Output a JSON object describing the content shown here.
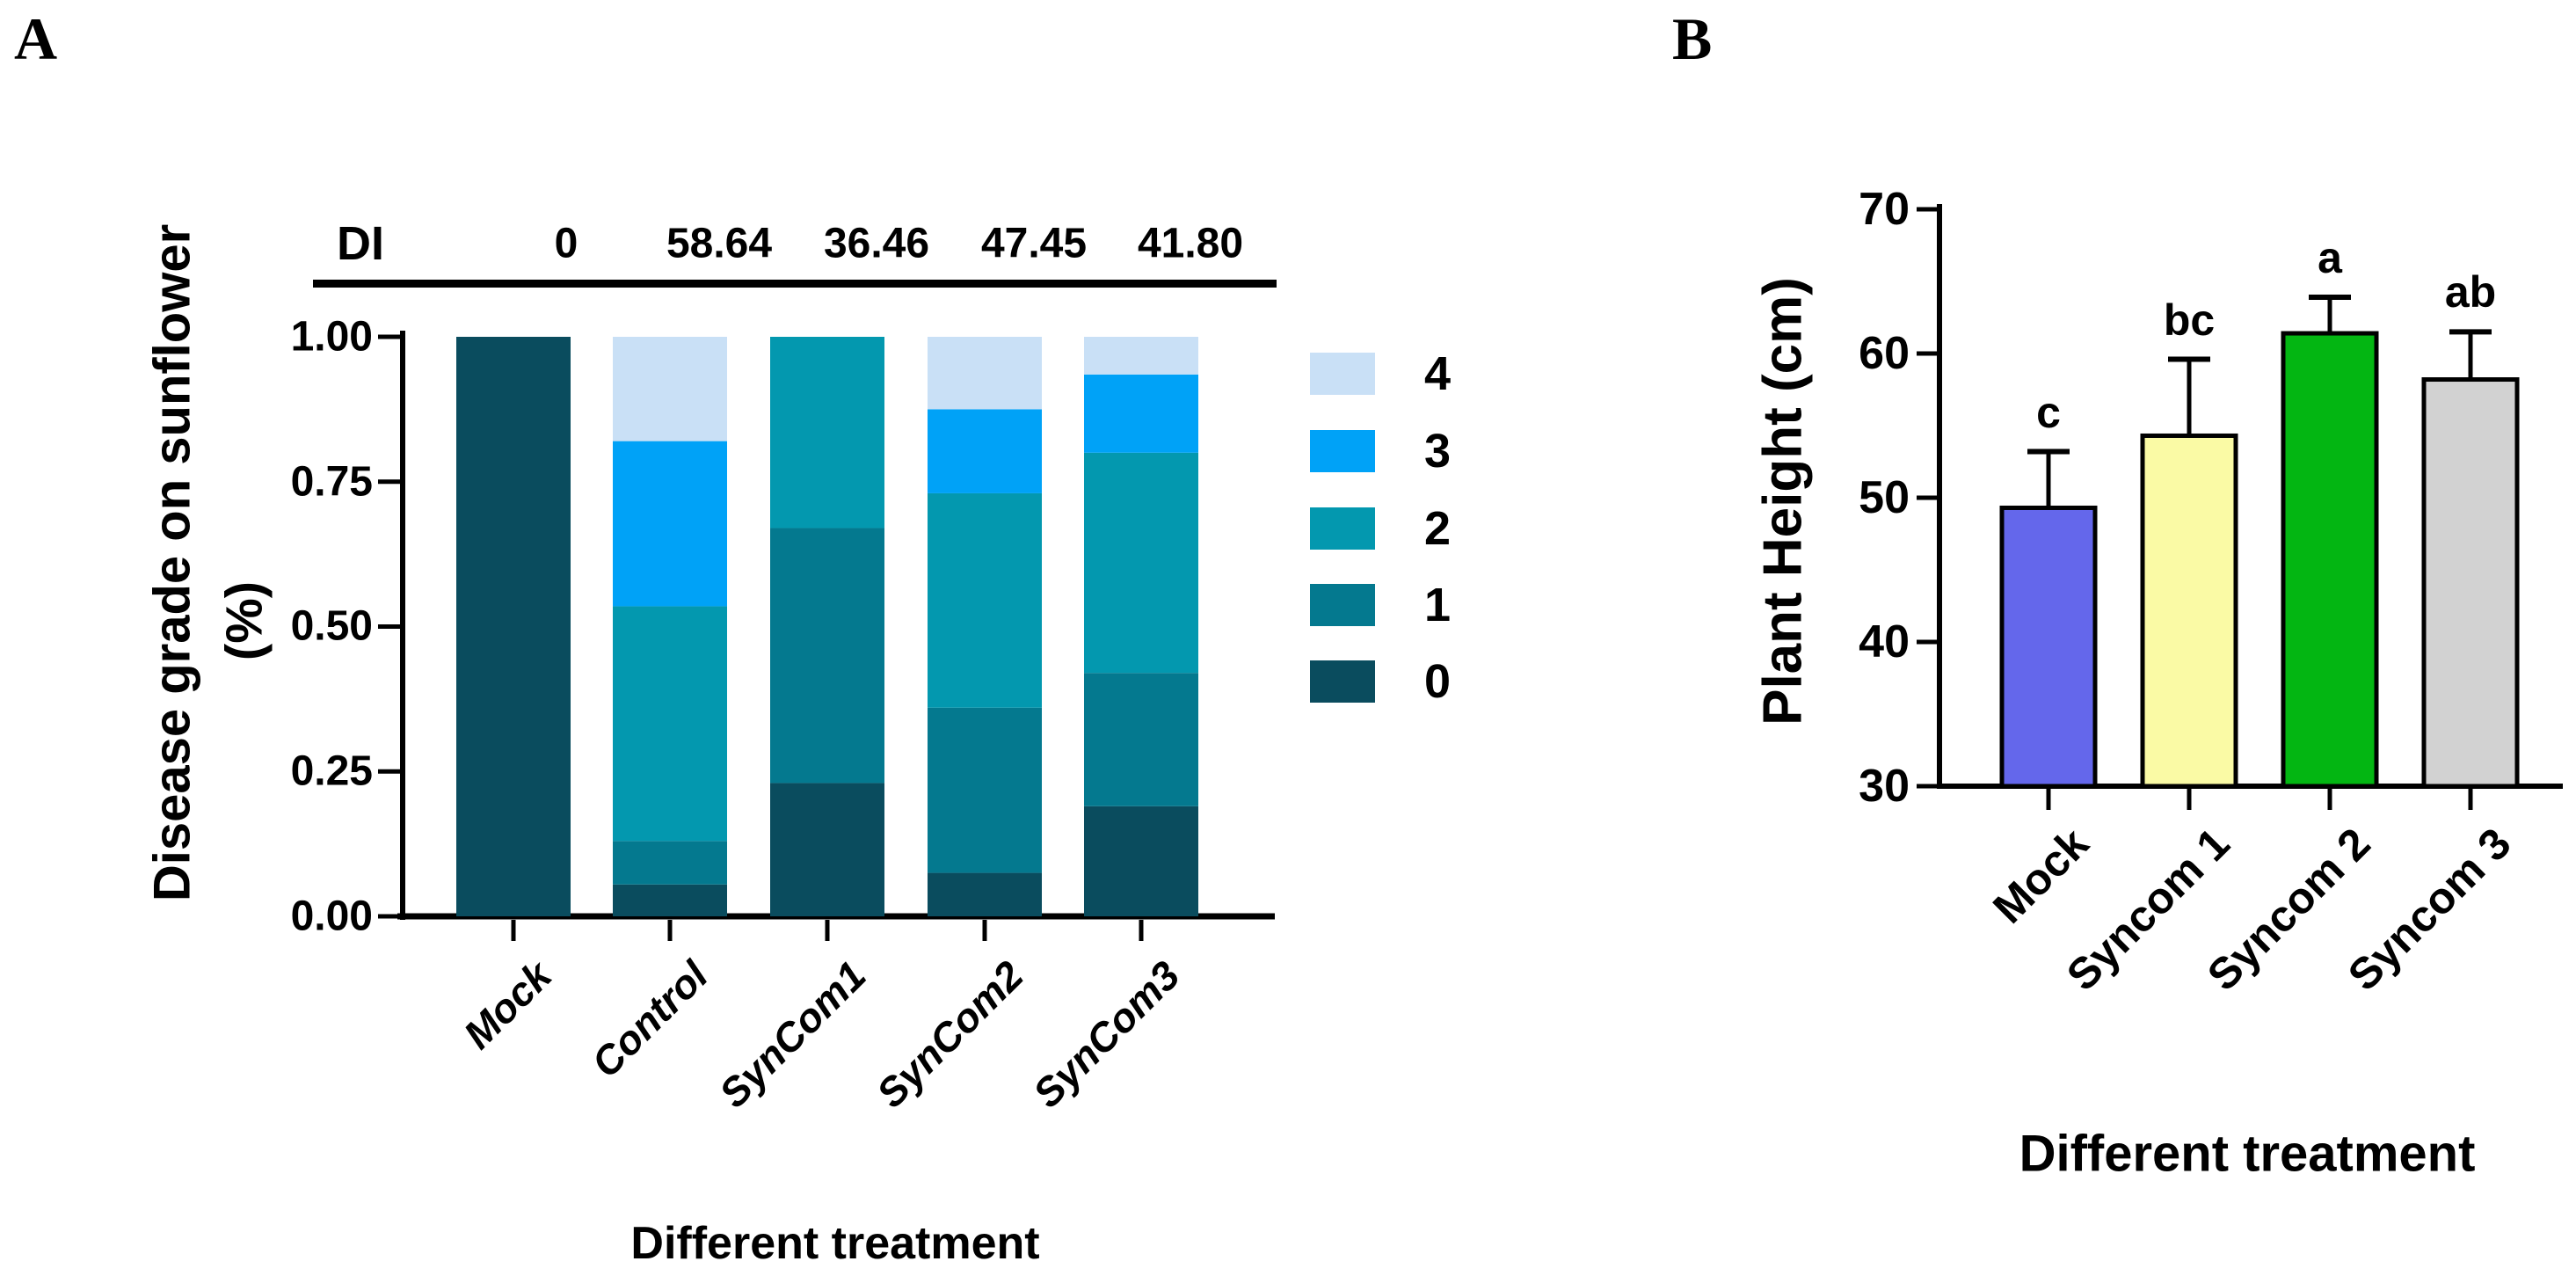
{
  "figure": {
    "panel_a": {
      "letter": "A",
      "di_label": "DI",
      "di_values": [
        "0",
        "58.64",
        "36.46",
        "47.45",
        "41.80"
      ],
      "y_ticks": [
        "1.00",
        "0.75",
        "0.50",
        "0.25",
        "0.00"
      ],
      "y_axis_title_line1": "Disease grade on sunflower",
      "y_axis_title_line2": "(%)",
      "x_axis_title": "Different treatment",
      "categories": [
        "Mock",
        "Control",
        "SynCom1",
        "SynCom2",
        "SynCom3"
      ],
      "legend": {
        "entries": [
          {
            "label": "4",
            "color": "#C9E0F6"
          },
          {
            "label": "3",
            "color": "#00A2F7"
          },
          {
            "label": "2",
            "color": "#0398AF"
          },
          {
            "label": "1",
            "color": "#04798F"
          },
          {
            "label": "0",
            "color": "#0A4C5E"
          }
        ]
      }
    },
    "panel_b": {
      "letter": "B",
      "y_ticks": [
        "70",
        "60",
        "50",
        "40",
        "30"
      ],
      "y_axis_title": "Plant Height (cm)",
      "x_axis_title": "Different treatment",
      "categories": [
        "Mock",
        "Syncom 1",
        "Syncom 2",
        "Syncom 3"
      ],
      "sig_letters": [
        "c",
        "bc",
        "a",
        "ab"
      ]
    }
  },
  "chart_data": [
    {
      "type": "bar",
      "subtype": "stacked",
      "title": "Disease grade on sunflower (%)",
      "xlabel": "Different treatment",
      "ylabel": "Disease grade on sunflower (%)",
      "ylim": [
        0,
        1
      ],
      "y_tick_values": [
        0.0,
        0.25,
        0.5,
        0.75,
        1.0
      ],
      "grid": false,
      "legend_position": "right",
      "categories": [
        "Mock",
        "Control",
        "SynCom1",
        "SynCom2",
        "SynCom3"
      ],
      "di_row": {
        "label": "DI",
        "values": [
          0,
          58.64,
          36.46,
          47.45,
          41.8
        ]
      },
      "series": [
        {
          "name": "0",
          "color": "#0A4C5E",
          "values": [
            1.0,
            0.055,
            0.23,
            0.075,
            0.19
          ]
        },
        {
          "name": "1",
          "color": "#04798F",
          "values": [
            0,
            0.075,
            0.44,
            0.285,
            0.23
          ]
        },
        {
          "name": "2",
          "color": "#0398AF",
          "values": [
            0,
            0.405,
            0.33,
            0.37,
            0.38
          ]
        },
        {
          "name": "3",
          "color": "#00A2F7",
          "values": [
            0,
            0.285,
            0,
            0.145,
            0.135
          ]
        },
        {
          "name": "4",
          "color": "#C9E0F6",
          "values": [
            0,
            0.18,
            0,
            0.125,
            0.065
          ]
        }
      ]
    },
    {
      "type": "bar",
      "title": "Plant Height (cm) by treatment",
      "xlabel": "Different treatment",
      "ylabel": "Plant Height (cm)",
      "ylim": [
        30,
        70
      ],
      "y_tick_values": [
        30,
        40,
        50,
        60,
        70
      ],
      "grid": false,
      "categories": [
        "Mock",
        "Syncom 1",
        "Syncom 2",
        "Syncom 3"
      ],
      "values": [
        49.3,
        54.3,
        61.4,
        58.2
      ],
      "errors": [
        3.9,
        5.3,
        2.5,
        3.3
      ],
      "sig_letters": [
        "c",
        "bc",
        "a",
        "ab"
      ],
      "bar_colors": [
        "#6467EB",
        "#FAFAA5",
        "#03B612",
        "#D2D2D2"
      ],
      "bar_border_color": "#000000"
    }
  ]
}
